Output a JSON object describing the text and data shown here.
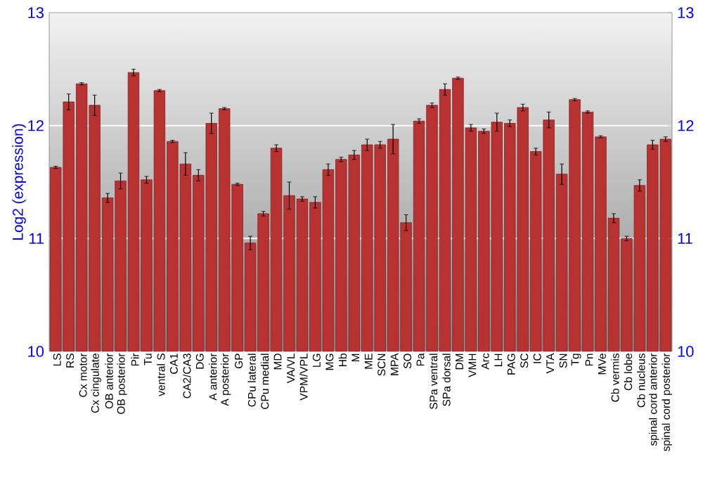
{
  "chart_data": {
    "type": "bar",
    "ylabel": "Log2 (expression)",
    "categories": [
      "LS",
      "RS",
      "Cx motor",
      "Cx cingulate",
      "OB anterior",
      "OB posterior",
      "Pir",
      "Tu",
      "ventral S",
      "CA1",
      "CA2/CA3",
      "DG",
      "A anterior",
      "A posterior",
      "GP",
      "CPu lateral",
      "CPu medial",
      "MD",
      "VA/VL",
      "VPM/VPL",
      "LG",
      "MG",
      "Hb",
      "M",
      "ME",
      "SCN",
      "MPA",
      "SO",
      "Pa",
      "SPa ventral",
      "SPa dorsal",
      "DM",
      "VMH",
      "Arc",
      "LH",
      "PAG",
      "SC",
      "IC",
      "VTA",
      "SN",
      "Tg",
      "Pn",
      "MVe",
      "Cb vermis",
      "Cb lobe",
      "Cb nucleus",
      "spinal cord anterior",
      "spinal cord posterior"
    ],
    "values": [
      11.63,
      12.21,
      12.37,
      12.18,
      11.36,
      11.51,
      12.47,
      11.52,
      12.31,
      11.86,
      11.66,
      11.56,
      12.02,
      12.15,
      11.48,
      10.96,
      11.22,
      11.8,
      11.38,
      11.35,
      11.32,
      11.61,
      11.7,
      11.74,
      11.83,
      11.83,
      11.88,
      11.14,
      12.04,
      12.18,
      12.32,
      12.42,
      11.98,
      11.95,
      12.03,
      12.02,
      12.16,
      11.77,
      12.05,
      11.57,
      12.23,
      12.12,
      11.9,
      11.18,
      11.0,
      11.47,
      11.83,
      11.88
    ],
    "errors": [
      0.01,
      0.07,
      0.01,
      0.09,
      0.04,
      0.07,
      0.03,
      0.03,
      0.01,
      0.01,
      0.1,
      0.05,
      0.09,
      0.01,
      0.01,
      0.06,
      0.02,
      0.03,
      0.12,
      0.02,
      0.05,
      0.05,
      0.02,
      0.04,
      0.05,
      0.03,
      0.13,
      0.07,
      0.02,
      0.02,
      0.05,
      0.01,
      0.03,
      0.02,
      0.08,
      0.03,
      0.03,
      0.03,
      0.07,
      0.09,
      0.01,
      0.01,
      0.01,
      0.04,
      0.02,
      0.05,
      0.04,
      0.02
    ],
    "color": "#b83232",
    "ylim": [
      10,
      13
    ],
    "yticks": [
      10,
      11,
      12,
      13
    ],
    "y2lim": [
      10,
      13
    ],
    "y2ticks": [
      10,
      11,
      12,
      13
    ],
    "grid": "y"
  }
}
